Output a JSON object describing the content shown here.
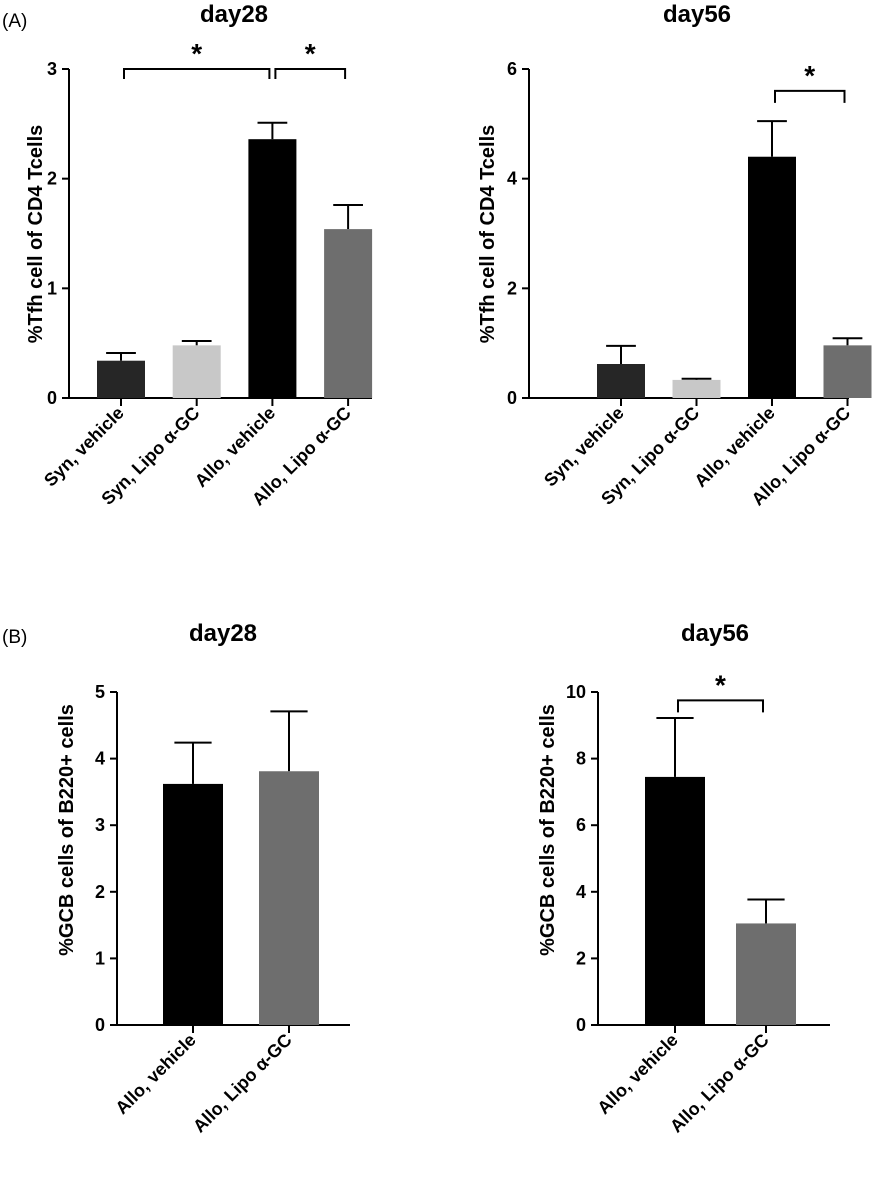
{
  "panels": {
    "A": "(A)",
    "B": "(B)"
  },
  "chart_data": [
    {
      "type": "bar",
      "panel": "A",
      "title": "day28",
      "ylabel": "%Tfh cell of CD4 Tcells",
      "categories": [
        "Syn, vehicle",
        "Syn, Lipo α-GC",
        "Allo, vehicle",
        "Allo, Lipo α-GC"
      ],
      "values": [
        0.34,
        0.48,
        2.36,
        1.54
      ],
      "errors": [
        0.07,
        0.04,
        0.15,
        0.22
      ],
      "colors": [
        "#262626",
        "#c8c8c8",
        "#000000",
        "#6e6e6e"
      ],
      "ylim": [
        0,
        3
      ],
      "yticks": [
        0,
        1,
        2,
        3
      ],
      "significance": [
        {
          "from": 0,
          "to": 2,
          "y": 3.0,
          "label": "*"
        },
        {
          "from": 2,
          "to": 3,
          "y": 3.0,
          "label": "*"
        }
      ]
    },
    {
      "type": "bar",
      "panel": "A",
      "title": "day56",
      "ylabel": "%Tfh cell of CD4 Tcells",
      "categories": [
        "Syn, vehicle",
        "Syn, Lipo α-GC",
        "Allo, vehicle",
        "Allo, Lipo α-GC"
      ],
      "values": [
        0.62,
        0.33,
        4.4,
        0.96
      ],
      "errors": [
        0.33,
        0.02,
        0.65,
        0.13
      ],
      "colors": [
        "#262626",
        "#c8c8c8",
        "#000000",
        "#6e6e6e"
      ],
      "ylim": [
        0,
        6
      ],
      "yticks": [
        0,
        2,
        4,
        6
      ],
      "significance": [
        {
          "from": 2,
          "to": 3,
          "y": 5.6,
          "label": "*"
        }
      ]
    },
    {
      "type": "bar",
      "panel": "B",
      "title": "day28",
      "ylabel": "%GCB cells of B220+ cells",
      "categories": [
        "Allo, vehicle",
        "Allo, Lipo α-GC"
      ],
      "values": [
        3.62,
        3.81
      ],
      "errors": [
        0.62,
        0.9
      ],
      "colors": [
        "#000000",
        "#6e6e6e"
      ],
      "ylim": [
        0,
        5
      ],
      "yticks": [
        0,
        1,
        2,
        3,
        4,
        5
      ],
      "significance": []
    },
    {
      "type": "bar",
      "panel": "B",
      "title": "day56",
      "ylabel": "%GCB cells of B220+ cells",
      "categories": [
        "Allo, vehicle",
        "Allo, Lipo α-GC"
      ],
      "values": [
        7.45,
        3.05
      ],
      "errors": [
        1.77,
        0.72
      ],
      "colors": [
        "#000000",
        "#6e6e6e"
      ],
      "ylim": [
        0,
        10
      ],
      "yticks": [
        0,
        2,
        4,
        6,
        8,
        10
      ],
      "significance": [
        {
          "from": 0,
          "to": 1,
          "y": 9.75,
          "label": "*"
        }
      ]
    }
  ]
}
